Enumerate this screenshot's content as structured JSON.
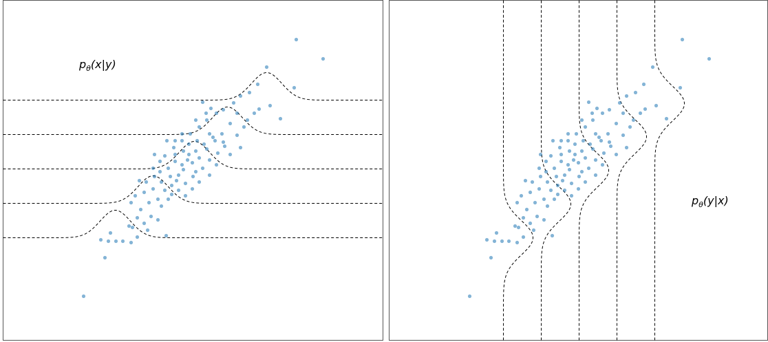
{
  "chart_data": {
    "type": "scatter",
    "color": "#1f77b4",
    "xlim": [
      0,
      551
    ],
    "ylim": [
      0,
      494
    ],
    "x": [
      117,
      148,
      426,
      465,
      383,
      423,
      403,
      388,
      372,
      290,
      302,
      142,
      153,
      164,
      174,
      186,
      195,
      156,
      183,
      188,
      237,
      200,
      195,
      205,
      215,
      210,
      225,
      230,
      240,
      186,
      192,
      205,
      218,
      230,
      245,
      255,
      260,
      268,
      250,
      240,
      228,
      220,
      235,
      248,
      260,
      272,
      285,
      296,
      310,
      320,
      335,
      345,
      358,
      370,
      330,
      318,
      305,
      292,
      280,
      270,
      262,
      275,
      285,
      296,
      308,
      320,
      300,
      290,
      300,
      312,
      322,
      340,
      350,
      285,
      276,
      265,
      255,
      245,
      235,
      225,
      265,
      275,
      280,
      252,
      243,
      270,
      282,
      262,
      250,
      300,
      310,
      260,
      250,
      330,
      345,
      355,
      365,
      340,
      295,
      280,
      208,
      218,
      228,
      238,
      212,
      198,
      220
    ],
    "values": [
      64,
      120,
      437,
      409,
      397,
      367,
      322,
      341,
      336,
      346,
      337,
      146,
      144,
      144,
      144,
      142,
      150,
      156,
      166,
      164,
      152,
      190,
      178,
      170,
      180,
      160,
      175,
      195,
      205,
      200,
      210,
      215,
      220,
      230,
      225,
      240,
      255,
      262,
      260,
      250,
      245,
      238,
      268,
      280,
      290,
      300,
      310,
      320,
      330,
      335,
      345,
      355,
      360,
      372,
      315,
      300,
      295,
      285,
      275,
      270,
      248,
      258,
      265,
      278,
      290,
      288,
      300,
      250,
      262,
      272,
      282,
      298,
      310,
      230,
      238,
      228,
      218,
      212,
      218,
      205,
      210,
      220,
      245,
      232,
      238,
      285,
      290,
      275,
      270,
      240,
      255,
      300,
      290,
      270,
      280,
      320,
      330,
      330,
      330,
      320,
      230,
      250,
      260,
      290,
      200,
      232,
      270
    ],
    "panels": [
      {
        "annotation": {
          "base": "p",
          "sub": "θ",
          "rest": "(x|y)"
        },
        "conditional_axis": "x",
        "conditionals": [
          {
            "level": 149,
            "mean": 163,
            "sd": 22,
            "height": 40
          },
          {
            "level": 199,
            "mean": 218,
            "sd": 22,
            "height": 40
          },
          {
            "level": 249,
            "mean": 278,
            "sd": 22,
            "height": 40
          },
          {
            "level": 299,
            "mean": 326,
            "sd": 22,
            "height": 40
          },
          {
            "level": 349,
            "mean": 383,
            "sd": 22,
            "height": 40
          }
        ]
      },
      {
        "annotation": {
          "base": "p",
          "sub": "θ",
          "rest": "(y|x)"
        },
        "conditional_axis": "y",
        "conditionals": [
          {
            "level": 166,
            "mean": 149,
            "sd": 25,
            "height": 43
          },
          {
            "level": 221,
            "mean": 198,
            "sd": 25,
            "height": 43
          },
          {
            "level": 276,
            "mean": 247,
            "sd": 25,
            "height": 43
          },
          {
            "level": 331,
            "mean": 296,
            "sd": 25,
            "height": 43
          },
          {
            "level": 386,
            "mean": 344,
            "sd": 25,
            "height": 43
          }
        ]
      }
    ]
  }
}
